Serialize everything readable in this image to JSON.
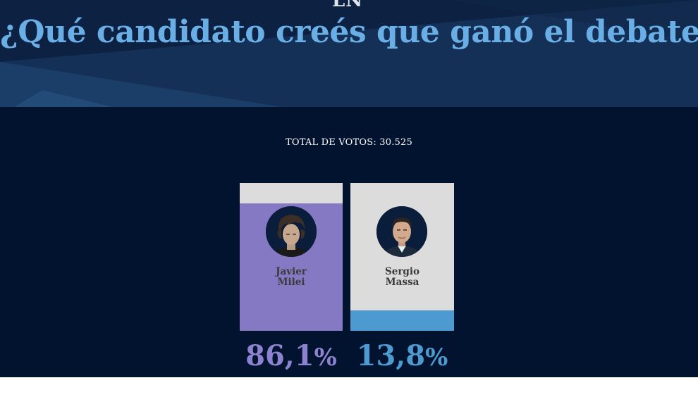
{
  "header": {
    "logo_fragment": "LN",
    "title": "¿Qué candidato creés que ganó el debate?"
  },
  "poll": {
    "total_votes_label": "TOTAL DE VOTOS: 30.525",
    "candidates": [
      {
        "first_name": "Javier",
        "last_name": "Milei",
        "percent": "86,1",
        "percent_sign": "%",
        "share": 0.861,
        "fill_color": "#8479c2",
        "text_color": "#8d82cf"
      },
      {
        "first_name": "Sergio",
        "last_name": "Massa",
        "percent": "13,8",
        "percent_sign": "%",
        "share": 0.138,
        "fill_color": "#4d9ad1",
        "text_color": "#4d9ad1"
      }
    ]
  },
  "colors": {
    "header_bg": "#0d2142",
    "results_bg": "#02132f",
    "title": "#6aaee6",
    "card_bg": "#dcdcdc"
  }
}
